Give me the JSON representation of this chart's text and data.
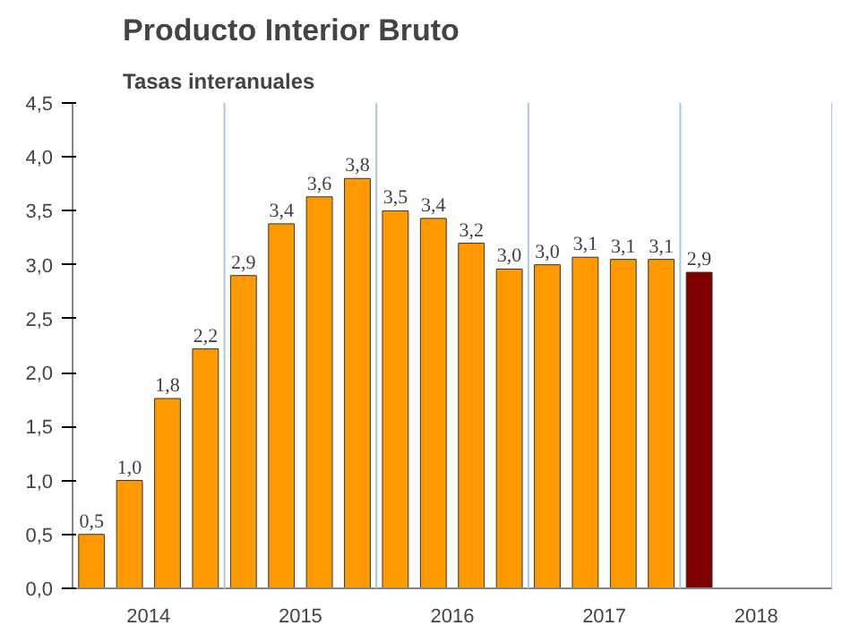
{
  "chart_data": {
    "type": "bar",
    "title": "Producto Interior Bruto",
    "subtitle": "Tasas interanuales",
    "categories": [
      "2014",
      "2015",
      "2016",
      "2017",
      "2018"
    ],
    "series": [
      {
        "colors": [
          "#ff9900",
          "#ff9900",
          "#ff9900",
          "#ff9900",
          "#800000"
        ],
        "values": [
          0.5,
          2.9,
          3.5,
          3.0,
          2.93
        ],
        "value_labels": [
          "0,5",
          "2,9",
          "3,5",
          "3,0",
          "2,9"
        ]
      },
      {
        "color": "#ff9900",
        "values": [
          1.0,
          3.38,
          3.43,
          3.07,
          null
        ],
        "value_labels": [
          "1,0",
          "3,4",
          "3,4",
          "3,1",
          null
        ]
      },
      {
        "color": "#ff9900",
        "values": [
          1.76,
          3.63,
          3.2,
          3.05,
          null
        ],
        "value_labels": [
          "1,8",
          "3,6",
          "3,2",
          "3,1",
          null
        ]
      },
      {
        "color": "#ff9900",
        "values": [
          2.22,
          3.8,
          2.96,
          3.05,
          null
        ],
        "value_labels": [
          "2,2",
          "3,8",
          "3,0",
          "3,1",
          null
        ]
      }
    ],
    "ylim": [
      0,
      4.5
    ],
    "yticks": [
      {
        "value": 0,
        "label": "0,0"
      },
      {
        "value": 0.5,
        "label": "0,5"
      },
      {
        "value": 1,
        "label": "1,0"
      },
      {
        "value": 1.5,
        "label": "1,5"
      },
      {
        "value": 2,
        "label": "2,0"
      },
      {
        "value": 2.5,
        "label": "2,5"
      },
      {
        "value": 3,
        "label": "3,0"
      },
      {
        "value": 3.5,
        "label": "3,5"
      },
      {
        "value": 4,
        "label": "4,0"
      },
      {
        "value": 4.5,
        "label": "4,5"
      }
    ],
    "grid": false
  }
}
